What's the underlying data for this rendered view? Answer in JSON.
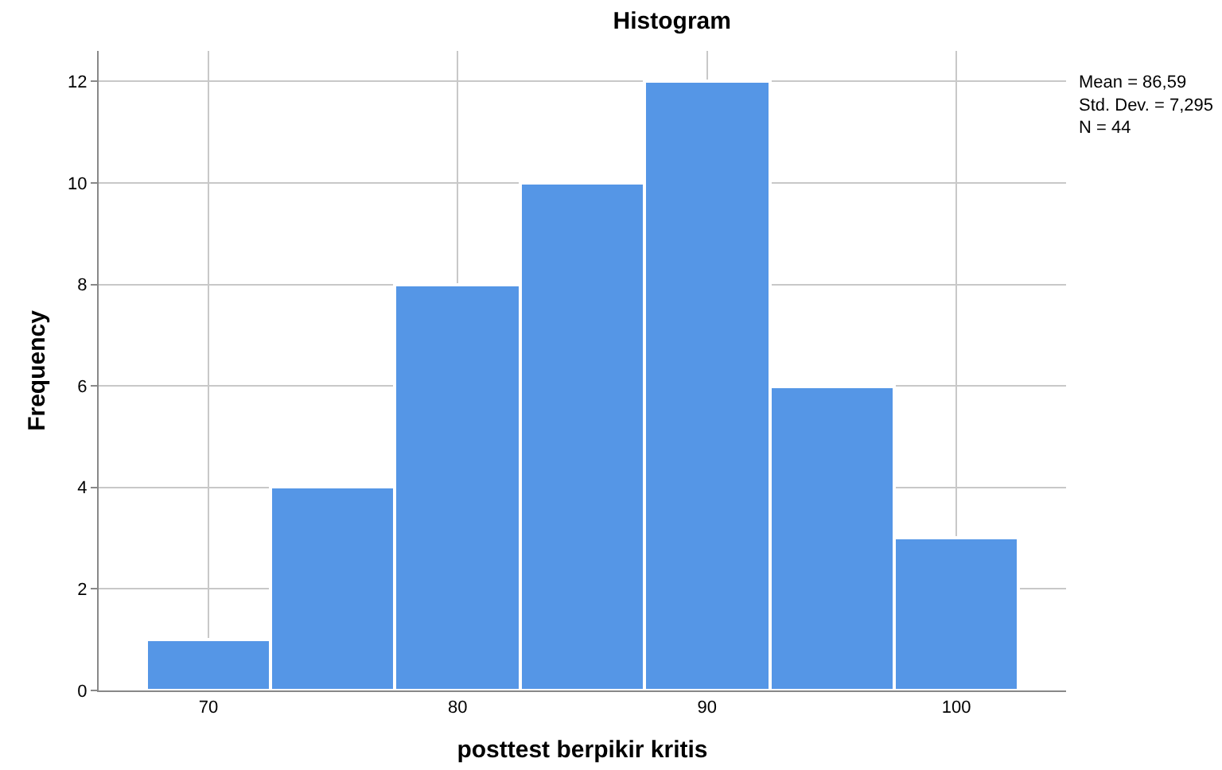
{
  "chart_data": {
    "type": "histogram",
    "title": "Histogram",
    "xlabel": "posttest berpikir kritis",
    "ylabel": "Frequency",
    "bins": [
      67.5,
      72.5,
      77.5,
      82.5,
      87.5,
      92.5,
      97.5,
      102.5
    ],
    "values": [
      1,
      4,
      8,
      10,
      12,
      6,
      3
    ],
    "color": "#5596e6",
    "xlim": [
      65.6,
      104.4
    ],
    "xticks": [
      70,
      80,
      90,
      100
    ],
    "ylim": [
      0,
      12.6
    ],
    "yticks": [
      0,
      2,
      4,
      6,
      8,
      10,
      12
    ],
    "grid": true,
    "annotations": [
      "Mean = 86,59\nStd. Dev. = 7,295\nN = 44"
    ]
  }
}
